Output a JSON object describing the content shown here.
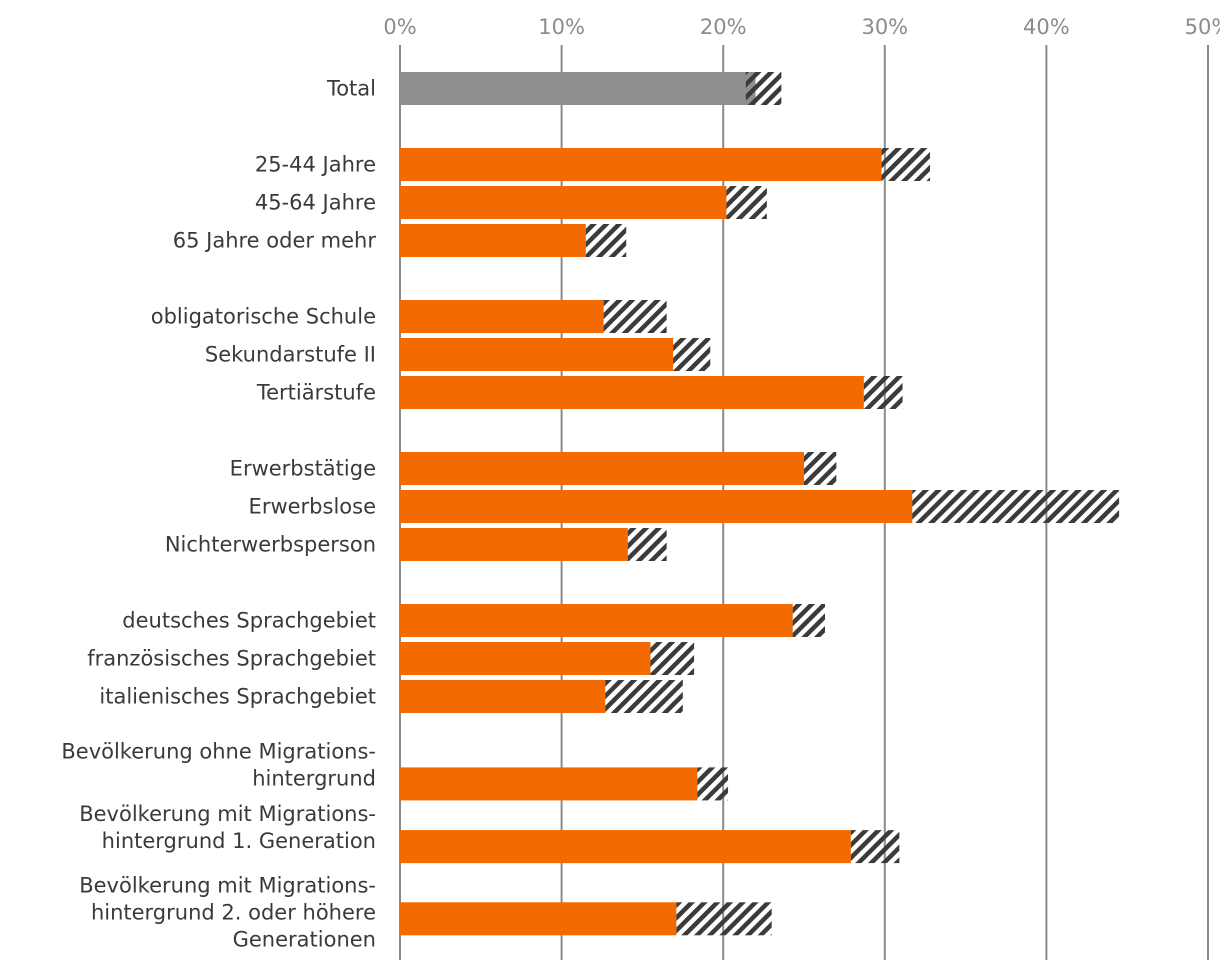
{
  "chart_data": {
    "type": "bar",
    "orientation": "horizontal",
    "title": "",
    "xlabel": "",
    "ylabel": "",
    "xlim": [
      0,
      50
    ],
    "x_ticks": [
      "0%",
      "10%",
      "20%",
      "30%",
      "40%",
      "50%"
    ],
    "grid": true,
    "axis_position": "top",
    "legend": "none",
    "colors": {
      "total": "#8f8f8f",
      "category": "#f26a00",
      "confidence_stripe": "#3b3b3b"
    },
    "categories": [
      {
        "label": [
          "Total"
        ],
        "value": 22.0,
        "ci_low": 21.4,
        "ci_high": 23.6,
        "group": "total",
        "slot": 0
      },
      {
        "label": [
          "25-44 Jahre"
        ],
        "value": 29.8,
        "ci_low": 29.8,
        "ci_high": 32.8,
        "group": "age",
        "slot": 2
      },
      {
        "label": [
          "45-64 Jahre"
        ],
        "value": 20.2,
        "ci_low": 20.2,
        "ci_high": 22.7,
        "group": "age",
        "slot": 3
      },
      {
        "label": [
          "65 Jahre oder mehr"
        ],
        "value": 11.5,
        "ci_low": 11.5,
        "ci_high": 14.0,
        "group": "age",
        "slot": 4
      },
      {
        "label": [
          "obligatorische Schule"
        ],
        "value": 12.6,
        "ci_low": 12.6,
        "ci_high": 16.5,
        "group": "education",
        "slot": 6
      },
      {
        "label": [
          "Sekundarstufe II"
        ],
        "value": 16.9,
        "ci_low": 16.9,
        "ci_high": 19.2,
        "group": "education",
        "slot": 7
      },
      {
        "label": [
          "Tertiärstufe"
        ],
        "value": 28.7,
        "ci_low": 28.7,
        "ci_high": 31.1,
        "group": "education",
        "slot": 8
      },
      {
        "label": [
          "Erwerbstätige"
        ],
        "value": 25.0,
        "ci_low": 25.0,
        "ci_high": 27.0,
        "group": "employment",
        "slot": 10
      },
      {
        "label": [
          "Erwerbslose"
        ],
        "value": 31.7,
        "ci_low": 31.7,
        "ci_high": 44.5,
        "group": "employment",
        "slot": 11
      },
      {
        "label": [
          "Nichterwerbsperson"
        ],
        "value": 14.1,
        "ci_low": 14.1,
        "ci_high": 16.5,
        "group": "employment",
        "slot": 12
      },
      {
        "label": [
          "deutsches Sprachgebiet"
        ],
        "value": 24.3,
        "ci_low": 24.3,
        "ci_high": 26.3,
        "group": "language",
        "slot": 14
      },
      {
        "label": [
          "französisches Sprachgebiet"
        ],
        "value": 15.5,
        "ci_low": 15.5,
        "ci_high": 18.2,
        "group": "language",
        "slot": 15
      },
      {
        "label": [
          "italienisches Sprachgebiet"
        ],
        "value": 12.7,
        "ci_low": 12.7,
        "ci_high": 17.5,
        "group": "language",
        "slot": 16
      },
      {
        "label": [
          "Bevölkerung ohne Migrations-",
          "hintergrund"
        ],
        "value": 18.4,
        "ci_low": 18.4,
        "ci_high": 20.3,
        "group": "migration",
        "slot": 18.3
      },
      {
        "label": [
          "Bevölkerung mit Migrations-",
          "hintergrund 1. Generation"
        ],
        "value": 27.9,
        "ci_low": 27.9,
        "ci_high": 30.9,
        "group": "migration",
        "slot": 19.95
      },
      {
        "label": [
          "Bevölkerung mit Migrations-",
          "hintergrund 2. oder höhere",
          "Generationen"
        ],
        "value": 17.1,
        "ci_low": 17.1,
        "ci_high": 23.0,
        "group": "migration",
        "slot": 21.85
      }
    ]
  }
}
